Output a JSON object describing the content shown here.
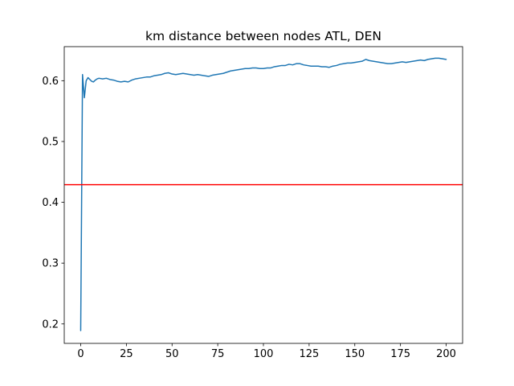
{
  "chart_data": {
    "type": "line",
    "title": "km distance between nodes ATL, DEN",
    "xlabel": "",
    "ylabel": "",
    "xlim": [
      -9,
      209
    ],
    "ylim": [
      0.168,
      0.656
    ],
    "grid": false,
    "x_ticks": [
      0,
      25,
      50,
      75,
      100,
      125,
      150,
      175,
      200
    ],
    "y_ticks": [
      0.2,
      0.3,
      0.4,
      0.5,
      0.6
    ],
    "series": [
      {
        "color": "#1f77b4",
        "x": [
          0,
          1,
          2,
          3,
          4,
          5,
          6,
          7,
          8,
          9,
          10,
          12,
          14,
          16,
          18,
          20,
          22,
          24,
          26,
          28,
          30,
          32,
          34,
          36,
          38,
          40,
          42,
          44,
          46,
          48,
          50,
          52,
          54,
          56,
          58,
          60,
          62,
          64,
          66,
          68,
          70,
          72,
          74,
          76,
          78,
          80,
          82,
          84,
          86,
          88,
          90,
          92,
          94,
          96,
          98,
          100,
          102,
          104,
          106,
          108,
          110,
          112,
          114,
          116,
          118,
          120,
          122,
          124,
          126,
          128,
          130,
          132,
          134,
          136,
          138,
          140,
          142,
          144,
          146,
          148,
          150,
          152,
          154,
          156,
          158,
          160,
          162,
          164,
          166,
          168,
          170,
          172,
          174,
          176,
          178,
          180,
          182,
          184,
          186,
          188,
          190,
          192,
          194,
          196,
          198,
          200
        ],
        "values": [
          0.189,
          0.61,
          0.572,
          0.6,
          0.605,
          0.602,
          0.599,
          0.598,
          0.601,
          0.603,
          0.604,
          0.603,
          0.604,
          0.602,
          0.601,
          0.599,
          0.598,
          0.599,
          0.598,
          0.601,
          0.603,
          0.604,
          0.605,
          0.606,
          0.606,
          0.608,
          0.609,
          0.61,
          0.612,
          0.613,
          0.611,
          0.61,
          0.611,
          0.612,
          0.611,
          0.61,
          0.609,
          0.61,
          0.609,
          0.608,
          0.607,
          0.609,
          0.61,
          0.611,
          0.612,
          0.614,
          0.616,
          0.617,
          0.618,
          0.619,
          0.62,
          0.62,
          0.621,
          0.621,
          0.62,
          0.62,
          0.621,
          0.621,
          0.623,
          0.624,
          0.625,
          0.625,
          0.627,
          0.626,
          0.628,
          0.628,
          0.626,
          0.625,
          0.624,
          0.624,
          0.624,
          0.623,
          0.623,
          0.622,
          0.624,
          0.625,
          0.627,
          0.628,
          0.629,
          0.629,
          0.63,
          0.631,
          0.632,
          0.635,
          0.633,
          0.632,
          0.631,
          0.63,
          0.629,
          0.628,
          0.628,
          0.629,
          0.63,
          0.631,
          0.63,
          0.631,
          0.632,
          0.633,
          0.634,
          0.633,
          0.635,
          0.636,
          0.637,
          0.637,
          0.636,
          0.635
        ]
      }
    ],
    "reference_line": {
      "orientation": "horizontal",
      "y": 0.429,
      "color": "#ff0000"
    }
  }
}
